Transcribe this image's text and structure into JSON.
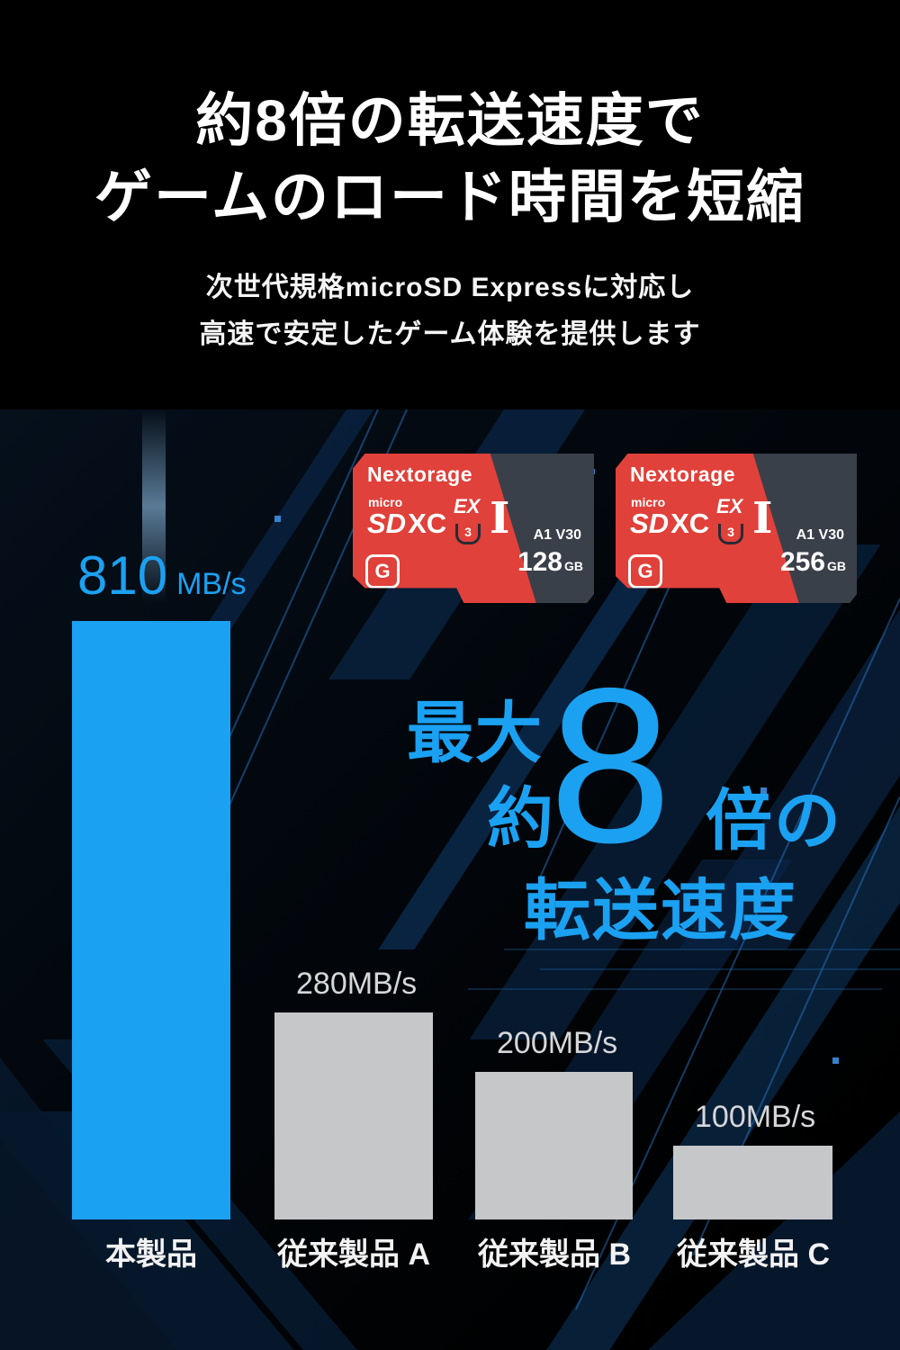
{
  "colors": {
    "accent_blue": "#1ba1f2",
    "bar_gray": "#c6c7c9",
    "card_red": "#e0413a",
    "card_dark": "#3a4049"
  },
  "header": {
    "title_line1": "約8倍の転送速度で",
    "title_line2": "ゲームのロード時間を短縮",
    "subtitle_line1": "次世代規格microSD Expressに対応し",
    "subtitle_line2": "高速で安定したゲーム体験を提供します"
  },
  "cards": [
    {
      "brand": "Nextorage",
      "logo_micro": "micro",
      "logo_sd": "SD",
      "logo_xc": "XC",
      "ex": "EX",
      "u3": "3",
      "uhs": "I",
      "speed_class": "A1 V30",
      "capacity": "128",
      "capacity_unit": "GB",
      "g_mark": "G"
    },
    {
      "brand": "Nextorage",
      "logo_micro": "micro",
      "logo_sd": "SD",
      "logo_xc": "XC",
      "ex": "EX",
      "u3": "3",
      "uhs": "I",
      "speed_class": "A1 V30",
      "capacity": "256",
      "capacity_unit": "GB",
      "g_mark": "G"
    }
  ],
  "highlight": {
    "saidai": "最大",
    "yaku": "約",
    "big_number": "8",
    "bai_no": "倍の",
    "tensou": "転送速度"
  },
  "chart_data": {
    "type": "bar",
    "title": "最大約8倍の転送速度",
    "categories": [
      "本製品",
      "従来製品 A",
      "従来製品 B",
      "従来製品 C"
    ],
    "values": [
      810,
      280,
      200,
      100
    ],
    "unit": "MB/s",
    "value_labels": [
      "810",
      "280MB/s",
      "200MB/s",
      "100MB/s"
    ],
    "main_value_unit": "MB/s",
    "xlabel": "",
    "ylabel": "",
    "ylim": [
      0,
      810
    ],
    "grid": false,
    "legend_position": "none",
    "bar_colors": [
      "#1ba1f2",
      "#c6c7c9",
      "#c6c7c9",
      "#c6c7c9"
    ]
  }
}
